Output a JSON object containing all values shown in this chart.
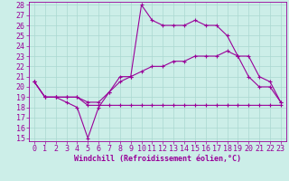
{
  "xlabel": "Windchill (Refroidissement éolien,°C)",
  "background_color": "#cceee8",
  "grid_color": "#aad8d0",
  "line_color": "#990099",
  "xlim": [
    -0.5,
    23.5
  ],
  "ylim": [
    14.7,
    28.3
  ],
  "xticks": [
    0,
    1,
    2,
    3,
    4,
    5,
    6,
    7,
    8,
    9,
    10,
    11,
    12,
    13,
    14,
    15,
    16,
    17,
    18,
    19,
    20,
    21,
    22,
    23
  ],
  "yticks": [
    15,
    16,
    17,
    18,
    19,
    20,
    21,
    22,
    23,
    24,
    25,
    26,
    27,
    28
  ],
  "series1_x": [
    0,
    1,
    2,
    3,
    4,
    5,
    6,
    7,
    8,
    9,
    10,
    11,
    12,
    13,
    14,
    15,
    16,
    17,
    18,
    19,
    20,
    21,
    22,
    23
  ],
  "series1_y": [
    20.5,
    19,
    19,
    18.5,
    18,
    15,
    18,
    19.5,
    21,
    21,
    28,
    26.5,
    26,
    26,
    26,
    26.5,
    26,
    26,
    25,
    23,
    21,
    20,
    20,
    18.5
  ],
  "series2_x": [
    0,
    1,
    2,
    3,
    4,
    5,
    6,
    7,
    8,
    9,
    10,
    11,
    12,
    13,
    14,
    15,
    16,
    17,
    18,
    19,
    20,
    21,
    22,
    23
  ],
  "series2_y": [
    20.5,
    19,
    19,
    19,
    19,
    18.5,
    18.5,
    19.5,
    20.5,
    21,
    21.5,
    22,
    22,
    22.5,
    22.5,
    23,
    23,
    23,
    23.5,
    23,
    23,
    21,
    20.5,
    18.5
  ],
  "series3_x": [
    0,
    1,
    2,
    3,
    4,
    5,
    6,
    7,
    8,
    9,
    10,
    11,
    12,
    13,
    14,
    15,
    16,
    17,
    18,
    19,
    20,
    21,
    22,
    23
  ],
  "series3_y": [
    20.5,
    19,
    19,
    19,
    19,
    18.2,
    18.2,
    18.2,
    18.2,
    18.2,
    18.2,
    18.2,
    18.2,
    18.2,
    18.2,
    18.2,
    18.2,
    18.2,
    18.2,
    18.2,
    18.2,
    18.2,
    18.2,
    18.2
  ],
  "tick_fontsize": 6,
  "xlabel_fontsize": 6
}
